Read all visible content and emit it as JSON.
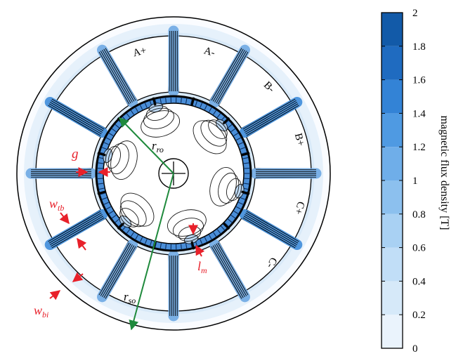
{
  "slot_labels": [
    "A+",
    "A-",
    "B-",
    "B+",
    "C+",
    "C-"
  ],
  "dimension_labels": {
    "air_gap": "g",
    "rotor_outer_radius": {
      "base": "r",
      "sub": "ro"
    },
    "stator_outer_radius": {
      "base": "r",
      "sub": "so"
    },
    "magnet_length": {
      "base": "l",
      "sub": "m"
    },
    "tooth_width": {
      "base": "w",
      "sub": "tb"
    },
    "back_iron_width": {
      "base": "w",
      "sub": "bi"
    }
  },
  "colorbar": {
    "label": "magnetic flux density [T]",
    "ticks": [
      "0",
      "0.2",
      "0.4",
      "0.6",
      "0.8",
      "1",
      "1.2",
      "1.4",
      "1.6",
      "1.8",
      "2"
    ],
    "min": 0,
    "max": 2,
    "levels": [
      "#ffffff",
      "#eaf3fc",
      "#d6e9f9",
      "#c1def7",
      "#a9d1f3",
      "#8cc0ee",
      "#6faee9",
      "#4f9ae2",
      "#3383d6",
      "#1f6bc0",
      "#125aa8"
    ]
  },
  "colors": {
    "annotation": "#e8202a",
    "radius_arrow": "#1f8a3c",
    "outline": "#000000"
  }
}
